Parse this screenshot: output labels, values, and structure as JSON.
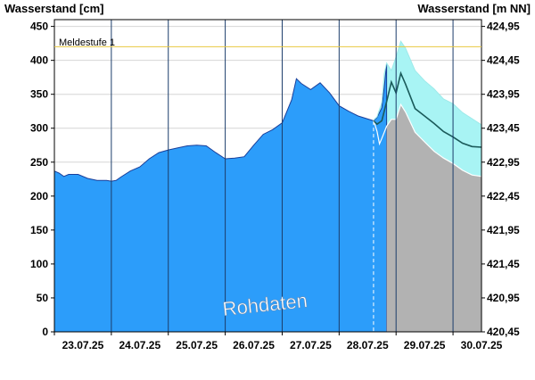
{
  "chart_data": {
    "type": "area",
    "ylabel_left": "Wasserstand [cm]",
    "ylabel_right": "Wasserstand [m NN]",
    "ylim": [
      0,
      460
    ],
    "yticks_left": [
      0,
      50,
      100,
      150,
      200,
      250,
      300,
      350,
      400,
      450
    ],
    "yticks_right": [
      "420,45",
      "420,95",
      "421,45",
      "421,95",
      "422,45",
      "422,95",
      "423,45",
      "423,95",
      "424,45",
      "424,95"
    ],
    "x_range": [
      "23.07.25 00:00",
      "30.07.25 12:00"
    ],
    "x_labels": [
      "23.07.25",
      "24.07.25",
      "25.07.25",
      "26.07.25",
      "27.07.25",
      "28.07.25",
      "29.07.25",
      "30.07.25"
    ],
    "threshold": {
      "label": "Meldestufe 1",
      "value": 420,
      "color": "#e8c840"
    },
    "watermark": "Rohdaten",
    "now_marker": "28.07.25 14:30",
    "forecast_start": "28.07.25 20:00",
    "colors": {
      "observed": "#2c9dfa",
      "forecast_band": "#a8f4f4",
      "forecast_mean": "#1a5a5a",
      "forecast_fill": "#b2b2b2",
      "grid": "#d6d6d6"
    },
    "series": [
      {
        "name": "",
        "kind": "observed",
        "points": [
          [
            "23.07.25 00:00",
            237
          ],
          [
            "23.07.25 02:00",
            234
          ],
          [
            "23.07.25 04:00",
            229
          ],
          [
            "23.07.25 06:00",
            232
          ],
          [
            "23.07.25 10:00",
            232
          ],
          [
            "23.07.25 14:00",
            226
          ],
          [
            "23.07.25 18:00",
            223
          ],
          [
            "23.07.25 22:00",
            223
          ],
          [
            "24.07.25 00:00",
            222
          ],
          [
            "24.07.25 02:00",
            223
          ],
          [
            "24.07.25 04:00",
            228
          ],
          [
            "24.07.25 08:00",
            237
          ],
          [
            "24.07.25 12:00",
            243
          ],
          [
            "24.07.25 16:00",
            255
          ],
          [
            "24.07.25 20:00",
            264
          ],
          [
            "25.07.25 00:00",
            268
          ],
          [
            "25.07.25 04:00",
            271
          ],
          [
            "25.07.25 08:00",
            274
          ],
          [
            "25.07.25 12:00",
            275
          ],
          [
            "25.07.25 16:00",
            274
          ],
          [
            "25.07.25 20:00",
            264
          ],
          [
            "26.07.25 00:00",
            255
          ],
          [
            "26.07.25 04:00",
            256
          ],
          [
            "26.07.25 08:00",
            258
          ],
          [
            "26.07.25 12:00",
            275
          ],
          [
            "26.07.25 16:00",
            291
          ],
          [
            "26.07.25 20:00",
            298
          ],
          [
            "27.07.25 00:00",
            308
          ],
          [
            "27.07.25 04:00",
            342
          ],
          [
            "27.07.25 06:00",
            373
          ],
          [
            "27.07.25 08:00",
            366
          ],
          [
            "27.07.25 12:00",
            357
          ],
          [
            "27.07.25 16:00",
            367
          ],
          [
            "27.07.25 20:00",
            352
          ],
          [
            "28.07.25 00:00",
            333
          ],
          [
            "28.07.25 04:00",
            325
          ],
          [
            "28.07.25 08:00",
            318
          ],
          [
            "28.07.25 14:30",
            311
          ],
          [
            "28.07.25 16:00",
            316
          ],
          [
            "28.07.25 18:00",
            330
          ],
          [
            "28.07.25 19:00",
            360
          ],
          [
            "28.07.25 20:00",
            395
          ]
        ]
      },
      {
        "name": "",
        "kind": "forecast_upper",
        "points": [
          [
            "28.07.25 14:30",
            312
          ],
          [
            "28.07.25 16:00",
            317
          ],
          [
            "28.07.25 18:00",
            338
          ],
          [
            "28.07.25 19:00",
            380
          ],
          [
            "28.07.25 20:00",
            396
          ],
          [
            "28.07.25 22:00",
            385
          ],
          [
            "29.07.25 00:00",
            405
          ],
          [
            "29.07.25 02:00",
            428
          ],
          [
            "29.07.25 04:00",
            418
          ],
          [
            "29.07.25 08:00",
            385
          ],
          [
            "29.07.25 12:00",
            370
          ],
          [
            "29.07.25 16:00",
            358
          ],
          [
            "29.07.25 20:00",
            343
          ],
          [
            "30.07.25 00:00",
            336
          ],
          [
            "30.07.25 04:00",
            323
          ],
          [
            "30.07.25 08:00",
            314
          ],
          [
            "30.07.25 12:00",
            305
          ]
        ]
      },
      {
        "name": "",
        "kind": "forecast_lower",
        "points": [
          [
            "28.07.25 14:30",
            312
          ],
          [
            "28.07.25 16:00",
            295
          ],
          [
            "28.07.25 17:00",
            277
          ],
          [
            "28.07.25 18:00",
            285
          ],
          [
            "28.07.25 20:00",
            303
          ],
          [
            "28.07.25 22:00",
            313
          ],
          [
            "29.07.25 00:00",
            313
          ],
          [
            "29.07.25 02:00",
            335
          ],
          [
            "29.07.25 04:00",
            324
          ],
          [
            "29.07.25 08:00",
            294
          ],
          [
            "29.07.25 12:00",
            280
          ],
          [
            "29.07.25 16:00",
            266
          ],
          [
            "29.07.25 20:00",
            256
          ],
          [
            "30.07.25 00:00",
            248
          ],
          [
            "30.07.25 04:00",
            238
          ],
          [
            "30.07.25 08:00",
            231
          ],
          [
            "30.07.25 12:00",
            229
          ]
        ]
      },
      {
        "name": "",
        "kind": "forecast_mean",
        "points": [
          [
            "28.07.25 14:30",
            311
          ],
          [
            "28.07.25 16:00",
            306
          ],
          [
            "28.07.25 18:00",
            311
          ],
          [
            "28.07.25 20:00",
            339
          ],
          [
            "28.07.25 22:00",
            368
          ],
          [
            "29.07.25 00:00",
            352
          ],
          [
            "29.07.25 02:00",
            381
          ],
          [
            "29.07.25 04:00",
            365
          ],
          [
            "29.07.25 08:00",
            329
          ],
          [
            "29.07.25 12:00",
            318
          ],
          [
            "29.07.25 16:00",
            307
          ],
          [
            "29.07.25 20:00",
            295
          ],
          [
            "30.07.25 00:00",
            287
          ],
          [
            "30.07.25 04:00",
            278
          ],
          [
            "30.07.25 08:00",
            273
          ],
          [
            "30.07.25 12:00",
            272
          ]
        ]
      }
    ]
  }
}
